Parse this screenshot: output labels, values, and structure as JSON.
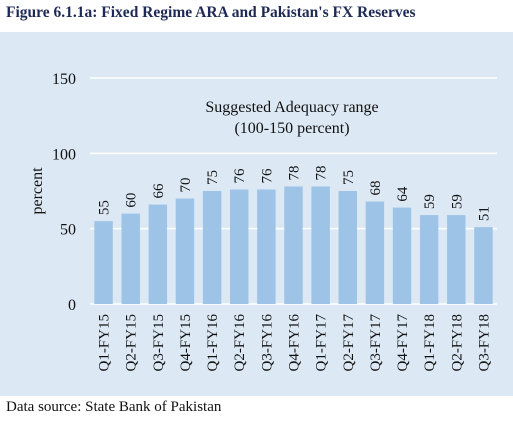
{
  "figure_title": "Figure 6.1.1a: Fixed Regime ARA and Pakistan's FX Reserves",
  "source_note": "Data source: State Bank of Pakistan",
  "colors": {
    "bar": "#9dc3e6",
    "panel": "#dce9f5",
    "grid": "#ffffff",
    "text": "#111111"
  },
  "chart_data": {
    "type": "bar",
    "title": "",
    "xlabel": "",
    "ylabel": "percent",
    "ylim": [
      0,
      150
    ],
    "yticks": [
      0,
      50,
      100,
      150
    ],
    "grid": true,
    "categories": [
      "Q1-FY15",
      "Q2-FY15",
      "Q3-FY15",
      "Q4-FY15",
      "Q1-FY16",
      "Q2-FY16",
      "Q3-FY16",
      "Q4-FY16",
      "Q1-FY17",
      "Q2-FY17",
      "Q3-FY17",
      "Q4-FY17",
      "Q1-FY18",
      "Q2-FY18",
      "Q3-FY18"
    ],
    "values": [
      55,
      60,
      66,
      70,
      75,
      76,
      76,
      78,
      78,
      75,
      68,
      64,
      59,
      59,
      51
    ],
    "annotation": {
      "line1": "Suggested Adequacy range",
      "line2": "(100-150 percent)"
    }
  }
}
